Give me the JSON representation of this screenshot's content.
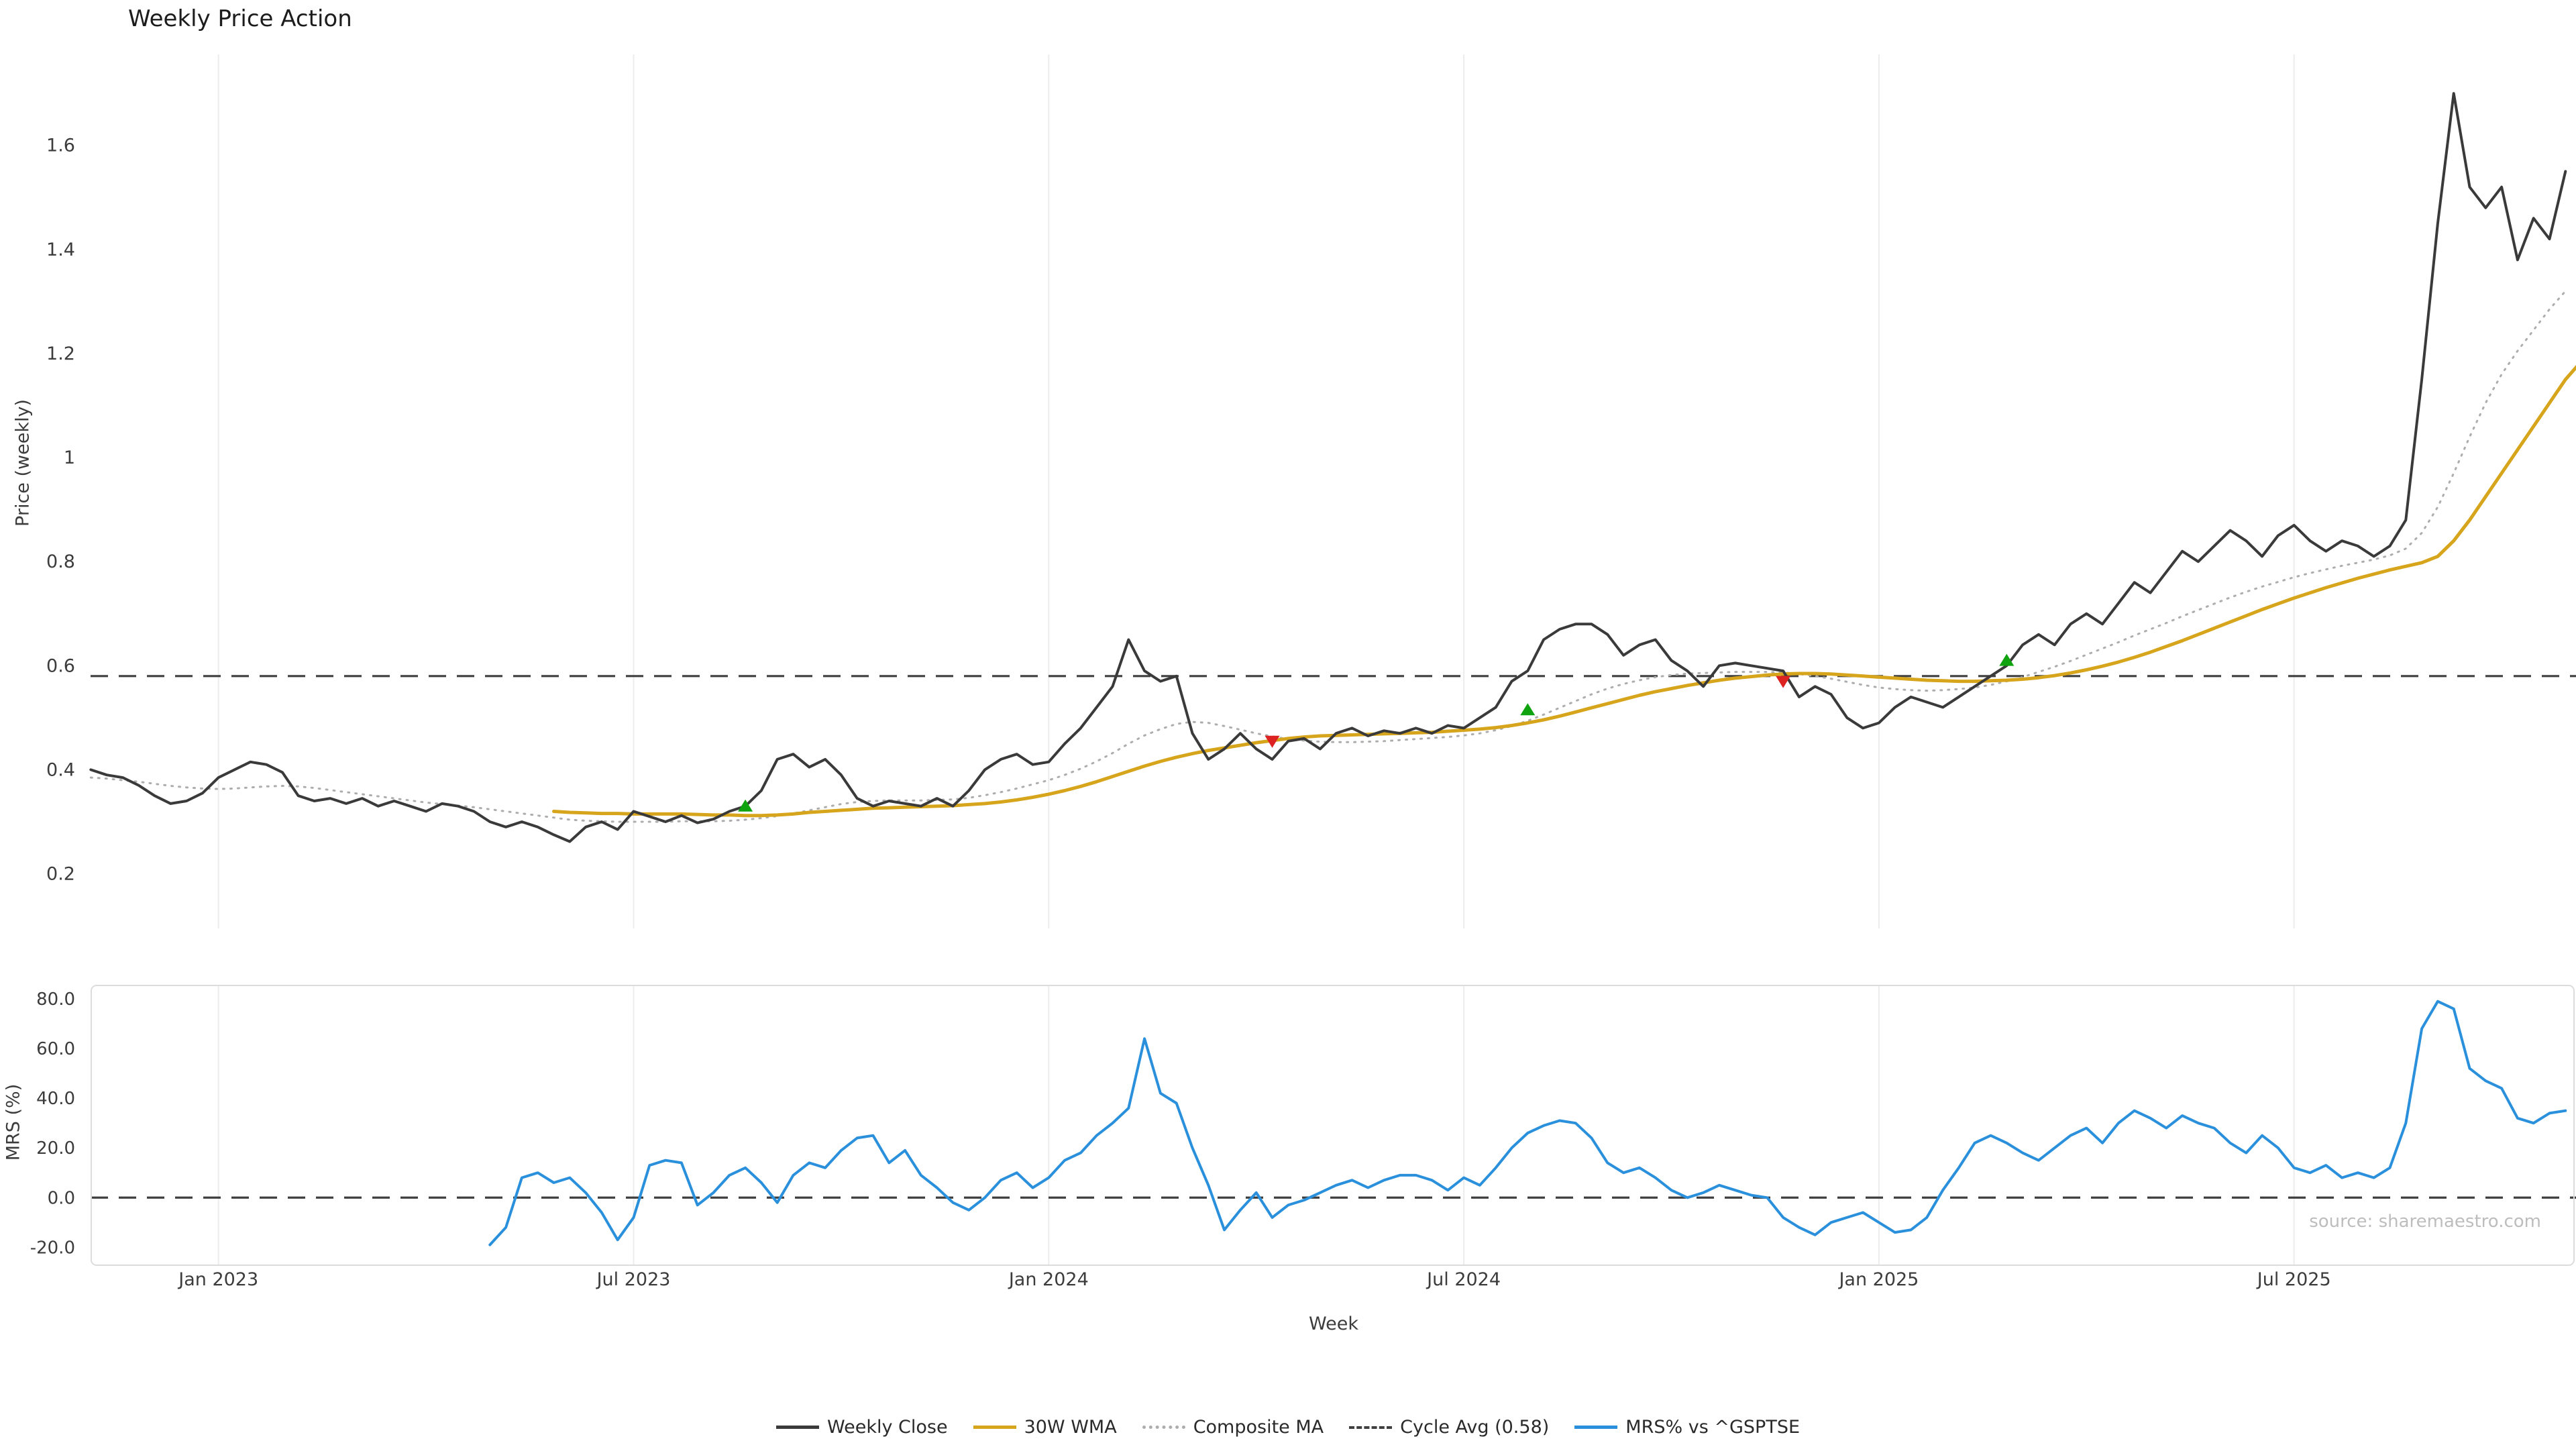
{
  "title": "Weekly Price Action",
  "source": "source: sharemaestro.com",
  "colors": {
    "weekly_close": "#3a3a3a",
    "wma": "#d6a51c",
    "composite": "#adadad",
    "cycle_avg": "#3f3f3f",
    "mrs": "#2a90dc",
    "buy": "#0fa30f",
    "sell": "#dd2222",
    "grid": "#ececec",
    "border": "#dcdcdc"
  },
  "axes": {
    "price": {
      "label": "Price (weekly)",
      "ticks": [
        {
          "v": 0.2,
          "label": "0.2"
        },
        {
          "v": 0.4,
          "label": "0.4"
        },
        {
          "v": 0.6,
          "label": "0.6"
        },
        {
          "v": 0.8,
          "label": "0.8"
        },
        {
          "v": 1.0,
          "label": "1"
        },
        {
          "v": 1.2,
          "label": "1.2"
        },
        {
          "v": 1.4,
          "label": "1.4"
        },
        {
          "v": 1.6,
          "label": "1.6"
        }
      ]
    },
    "mrs": {
      "label": "MRS (%)",
      "ticks": [
        {
          "v": 80,
          "label": "80.0"
        },
        {
          "v": 60,
          "label": "60.0"
        },
        {
          "v": 40,
          "label": "40.0"
        },
        {
          "v": 20,
          "label": "20.0"
        },
        {
          "v": 0,
          "label": "0.0"
        },
        {
          "v": -20,
          "label": "-20.0"
        }
      ]
    },
    "x": {
      "label": "Week",
      "ticks": [
        {
          "week": 8,
          "label": "Jan 2023"
        },
        {
          "week": 34,
          "label": "Jul 2023"
        },
        {
          "week": 60,
          "label": "Jan 2024"
        },
        {
          "week": 86,
          "label": "Jul 2024"
        },
        {
          "week": 112,
          "label": "Jan 2025"
        },
        {
          "week": 138,
          "label": "Jul 2025"
        }
      ]
    }
  },
  "legend": {
    "items": [
      {
        "label": "Weekly Close",
        "swatch": "solid",
        "color": "#3a3a3a"
      },
      {
        "label": "30W WMA",
        "swatch": "solid",
        "color": "#d6a51c"
      },
      {
        "label": "Composite MA",
        "swatch": "dotted",
        "color": "#adadad"
      },
      {
        "label": "Cycle Avg (0.58)",
        "swatch": "dashed",
        "color": "#3f3f3f"
      },
      {
        "label": "MRS% vs ^GSPTSE",
        "swatch": "solid",
        "color": "#2a90dc"
      }
    ]
  },
  "chart_data": [
    {
      "type": "line",
      "panel": "price",
      "title": "Weekly Price Action",
      "xlabel": "Week",
      "ylabel": "Price (weekly)",
      "ylim": [
        0.095,
        1.775
      ],
      "x_unit": "week_index_from_Nov_2022",
      "grid": "vertical-only",
      "series": [
        {
          "name": "Weekly Close",
          "color": "#3a3a3a",
          "style": "solid",
          "start_index": 0,
          "values": [
            0.4,
            0.39,
            0.385,
            0.37,
            0.35,
            0.335,
            0.34,
            0.355,
            0.385,
            0.4,
            0.415,
            0.41,
            0.395,
            0.35,
            0.34,
            0.345,
            0.335,
            0.345,
            0.33,
            0.34,
            0.33,
            0.32,
            0.335,
            0.33,
            0.32,
            0.3,
            0.29,
            0.3,
            0.29,
            0.275,
            0.262,
            0.29,
            0.3,
            0.285,
            0.32,
            0.31,
            0.3,
            0.312,
            0.298,
            0.305,
            0.32,
            0.33,
            0.36,
            0.42,
            0.43,
            0.405,
            0.42,
            0.39,
            0.345,
            0.33,
            0.34,
            0.335,
            0.33,
            0.345,
            0.33,
            0.36,
            0.4,
            0.42,
            0.43,
            0.41,
            0.415,
            0.45,
            0.48,
            0.52,
            0.56,
            0.65,
            0.59,
            0.57,
            0.58,
            0.47,
            0.42,
            0.44,
            0.47,
            0.44,
            0.42,
            0.455,
            0.46,
            0.44,
            0.47,
            0.48,
            0.465,
            0.475,
            0.47,
            0.48,
            0.47,
            0.485,
            0.48,
            0.5,
            0.52,
            0.57,
            0.59,
            0.65,
            0.67,
            0.68,
            0.68,
            0.66,
            0.62,
            0.64,
            0.65,
            0.61,
            0.59,
            0.56,
            0.6,
            0.605,
            0.6,
            0.595,
            0.59,
            0.54,
            0.56,
            0.545,
            0.5,
            0.48,
            0.49,
            0.52,
            0.54,
            0.53,
            0.52,
            0.54,
            0.56,
            0.58,
            0.6,
            0.64,
            0.66,
            0.64,
            0.68,
            0.7,
            0.68,
            0.72,
            0.76,
            0.74,
            0.78,
            0.82,
            0.8,
            0.83,
            0.86,
            0.84,
            0.81,
            0.85,
            0.87,
            0.84,
            0.82,
            0.84,
            0.83,
            0.81,
            0.83,
            0.88,
            1.15,
            1.45,
            1.7,
            1.52,
            1.48,
            1.52,
            1.38,
            1.46,
            1.42,
            1.55
          ]
        },
        {
          "name": "30W WMA",
          "color": "#d6a51c",
          "style": "solid",
          "start_index": 29,
          "values": [
            0.32,
            0.318,
            0.317,
            0.316,
            0.316,
            0.315,
            0.315,
            0.315,
            0.315,
            0.314,
            0.313,
            0.313,
            0.312,
            0.312,
            0.313,
            0.315,
            0.318,
            0.32,
            0.322,
            0.324,
            0.326,
            0.327,
            0.328,
            0.329,
            0.33,
            0.331,
            0.333,
            0.335,
            0.338,
            0.342,
            0.347,
            0.353,
            0.36,
            0.368,
            0.377,
            0.387,
            0.397,
            0.407,
            0.416,
            0.424,
            0.431,
            0.437,
            0.442,
            0.447,
            0.452,
            0.456,
            0.46,
            0.463,
            0.465,
            0.466,
            0.467,
            0.468,
            0.469,
            0.47,
            0.471,
            0.472,
            0.474,
            0.476,
            0.478,
            0.481,
            0.485,
            0.49,
            0.496,
            0.503,
            0.511,
            0.519,
            0.527,
            0.535,
            0.543,
            0.55,
            0.556,
            0.562,
            0.567,
            0.572,
            0.576,
            0.579,
            0.582,
            0.584,
            0.585,
            0.585,
            0.584,
            0.582,
            0.58,
            0.578,
            0.576,
            0.574,
            0.572,
            0.571,
            0.57,
            0.57,
            0.571,
            0.572,
            0.574,
            0.577,
            0.581,
            0.586,
            0.592,
            0.599,
            0.607,
            0.616,
            0.626,
            0.637,
            0.648,
            0.66,
            0.672,
            0.684,
            0.696,
            0.708,
            0.719,
            0.73,
            0.74,
            0.75,
            0.759,
            0.768,
            0.776,
            0.784,
            0.791,
            0.798,
            0.81,
            0.84,
            0.88,
            0.925,
            0.97,
            1.015,
            1.06,
            1.105,
            1.15,
            1.185,
            1.215
          ]
        },
        {
          "name": "Composite MA",
          "color": "#adadad",
          "style": "dotted",
          "start_index": 0,
          "values": [
            0.385,
            0.383,
            0.38,
            0.377,
            0.373,
            0.369,
            0.366,
            0.364,
            0.363,
            0.364,
            0.366,
            0.368,
            0.369,
            0.368,
            0.365,
            0.361,
            0.357,
            0.353,
            0.349,
            0.345,
            0.341,
            0.337,
            0.334,
            0.331,
            0.328,
            0.324,
            0.32,
            0.316,
            0.312,
            0.308,
            0.304,
            0.302,
            0.301,
            0.3,
            0.3,
            0.3,
            0.3,
            0.301,
            0.301,
            0.301,
            0.302,
            0.304,
            0.307,
            0.311,
            0.316,
            0.322,
            0.328,
            0.334,
            0.338,
            0.34,
            0.341,
            0.341,
            0.341,
            0.342,
            0.343,
            0.346,
            0.351,
            0.357,
            0.364,
            0.372,
            0.38,
            0.39,
            0.402,
            0.416,
            0.432,
            0.45,
            0.466,
            0.478,
            0.488,
            0.492,
            0.49,
            0.484,
            0.477,
            0.47,
            0.464,
            0.459,
            0.456,
            0.454,
            0.453,
            0.453,
            0.454,
            0.455,
            0.457,
            0.459,
            0.461,
            0.463,
            0.466,
            0.47,
            0.476,
            0.484,
            0.494,
            0.506,
            0.519,
            0.532,
            0.545,
            0.556,
            0.565,
            0.572,
            0.578,
            0.582,
            0.585,
            0.586,
            0.587,
            0.588,
            0.588,
            0.588,
            0.587,
            0.584,
            0.58,
            0.575,
            0.569,
            0.563,
            0.558,
            0.555,
            0.553,
            0.552,
            0.553,
            0.555,
            0.558,
            0.563,
            0.57,
            0.578,
            0.588,
            0.598,
            0.609,
            0.621,
            0.633,
            0.645,
            0.658,
            0.67,
            0.682,
            0.695,
            0.707,
            0.719,
            0.731,
            0.742,
            0.752,
            0.761,
            0.77,
            0.778,
            0.785,
            0.792,
            0.798,
            0.804,
            0.812,
            0.825,
            0.855,
            0.905,
            0.97,
            1.04,
            1.105,
            1.16,
            1.205,
            1.245,
            1.285,
            1.32
          ]
        },
        {
          "name": "Cycle Avg (0.58)",
          "color": "#3f3f3f",
          "style": "dashed",
          "constant": 0.58
        }
      ],
      "signals": {
        "buy": [
          {
            "week": 41,
            "price": 0.33
          },
          {
            "week": 90,
            "price": 0.515
          },
          {
            "week": 120,
            "price": 0.61
          }
        ],
        "sell": [
          {
            "week": 74,
            "price": 0.455
          },
          {
            "week": 106,
            "price": 0.57
          }
        ]
      }
    },
    {
      "type": "line",
      "panel": "mrs",
      "xlabel": "Week",
      "ylabel": "MRS (%)",
      "ylim": [
        -27.2,
        85.4
      ],
      "reference_line": 0,
      "series": [
        {
          "name": "MRS% vs ^GSPTSE",
          "color": "#2a90dc",
          "style": "solid",
          "start_index": 25,
          "values": [
            -19,
            -12,
            8,
            10,
            6,
            8,
            2,
            -6,
            -17,
            -8,
            13,
            15,
            14,
            -3,
            2,
            9,
            12,
            6,
            -2,
            9,
            14,
            12,
            19,
            24,
            25,
            14,
            19,
            9,
            4,
            -2,
            -5,
            0,
            7,
            10,
            4,
            8,
            15,
            18,
            25,
            30,
            36,
            64,
            42,
            38,
            20,
            5,
            -13,
            -5,
            2,
            -8,
            -3,
            -1,
            2,
            5,
            7,
            4,
            7,
            9,
            9,
            7,
            3,
            8,
            5,
            12,
            20,
            26,
            29,
            31,
            30,
            24,
            14,
            10,
            12,
            8,
            3,
            0,
            2,
            5,
            3,
            1,
            0,
            -8,
            -12,
            -15,
            -10,
            -8,
            -6,
            -10,
            -14,
            -13,
            -8,
            3,
            12,
            22,
            25,
            22,
            18,
            15,
            20,
            25,
            28,
            22,
            30,
            35,
            32,
            28,
            33,
            30,
            28,
            22,
            18,
            25,
            20,
            12,
            10,
            13,
            8,
            10,
            8,
            12,
            30,
            68,
            79,
            76,
            52,
            47,
            44,
            32,
            30,
            34,
            35
          ]
        }
      ]
    }
  ]
}
